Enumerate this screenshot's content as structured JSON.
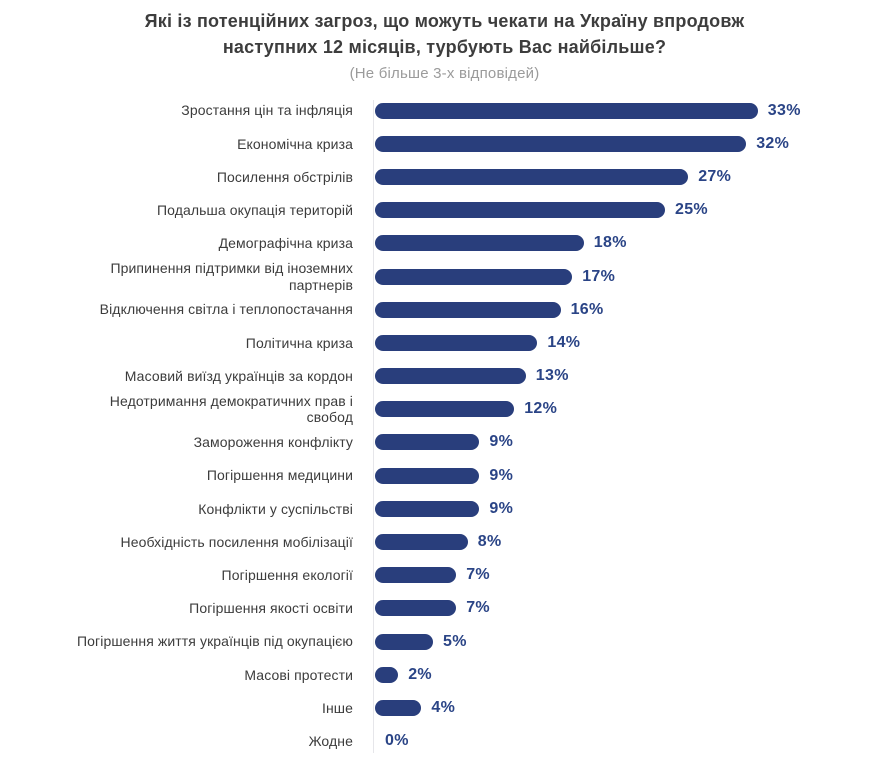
{
  "header": {
    "title_line1": "Які із потенційних загроз, що можуть чекати на Україну впродовж",
    "title_line2": "наступних 12 місяців, турбують Вас найбільше?",
    "subtitle": "(Не більше 3-х відповідей)"
  },
  "colors": {
    "bar": "#293e7c",
    "value_text": "#2a4486",
    "title_text": "#3d3d3d",
    "subtitle_text": "#9b9b9b",
    "label_text": "#3c3c3c",
    "axis_line": "#e6e6ea",
    "background": "#ffffff"
  },
  "chart_data": {
    "type": "bar",
    "orientation": "horizontal",
    "title": "Які із потенційних загроз, що можуть чекати на Україну впродовж наступних 12 місяців, турбують Вас найбільше?",
    "subtitle": "(Не більше 3-х відповідей)",
    "unit": "%",
    "xlabel": "",
    "ylabel": "",
    "xlim": [
      0,
      35
    ],
    "grid": false,
    "legend": "none",
    "data_labels": "outside-end",
    "categories": [
      "Зростання цін та інфляція",
      "Економічна криза",
      "Посилення обстрілів",
      "Подальша окупація територій",
      "Демографічна криза",
      "Припинення підтримки від іноземних\nпартнерів",
      "Відключення світла і теплопостачання",
      "Політична криза",
      "Масовий виїзд українців за кордон",
      "Недотримання демократичних прав і\nсвобод",
      "Замороження конфлікту",
      "Погіршення медицини",
      "Конфлікти у суспільстві",
      "Необхідність посилення мобілізації",
      "Погіршення екології",
      "Погіршення якості освіти",
      "Погіршення життя українців під окупацією",
      "Масові протести",
      "Інше",
      "Жодне"
    ],
    "values": [
      33,
      32,
      27,
      25,
      18,
      17,
      16,
      14,
      13,
      12,
      9,
      9,
      9,
      8,
      7,
      7,
      5,
      2,
      4,
      0
    ],
    "value_labels": [
      "33%",
      "32%",
      "27%",
      "25%",
      "18%",
      "17%",
      "16%",
      "14%",
      "13%",
      "12%",
      "9%",
      "9%",
      "9%",
      "8%",
      "7%",
      "7%",
      "5%",
      "2%",
      "4%",
      "0%"
    ]
  }
}
